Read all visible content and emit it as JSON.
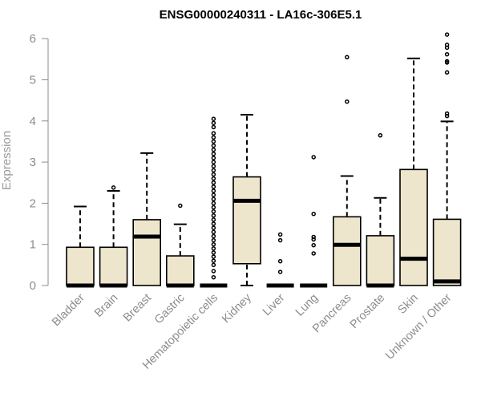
{
  "chart_data": {
    "type": "boxplot",
    "title": "ENSG00000240311 - LA16c-306E5.1",
    "xlabel": "",
    "ylabel": "Expression",
    "ylim": [
      0,
      6.2
    ],
    "yticks": [
      0,
      1,
      2,
      3,
      4,
      5,
      6
    ],
    "grid": false,
    "legend": "none",
    "colors": {
      "box_fill": "#ede6cd",
      "stroke": "#000000",
      "axis": "#8c8c8c"
    },
    "categories": [
      "Bladder",
      "Brain",
      "Breast",
      "Gastric",
      "Hematopoietic cells",
      "Kidney",
      "Liver",
      "Lung",
      "Pancreas",
      "Prostate",
      "Skin",
      "Unknown / Other"
    ],
    "boxes": [
      {
        "q1": 0,
        "median": 0,
        "q3": 0.93,
        "whisker_low": 0,
        "whisker_high": 1.92,
        "outliers": []
      },
      {
        "q1": 0,
        "median": 0,
        "q3": 0.93,
        "whisker_low": 0,
        "whisker_high": 2.3,
        "outliers": [
          2.38
        ]
      },
      {
        "q1": 0,
        "median": 1.19,
        "q3": 1.6,
        "whisker_low": 0,
        "whisker_high": 3.22,
        "outliers": []
      },
      {
        "q1": 0,
        "median": 0,
        "q3": 0.72,
        "whisker_low": 0,
        "whisker_high": 1.49,
        "outliers": [
          1.94
        ]
      },
      {
        "q1": 0,
        "median": 0,
        "q3": 0,
        "whisker_low": 0,
        "whisker_high": 0,
        "outliers": [
          0.2,
          0.35,
          0.5,
          0.6,
          0.7,
          0.8,
          0.9,
          1.0,
          1.1,
          1.2,
          1.3,
          1.4,
          1.5,
          1.6,
          1.7,
          1.8,
          1.9,
          2.0,
          2.1,
          2.2,
          2.3,
          2.4,
          2.5,
          2.6,
          2.7,
          2.8,
          2.9,
          3.0,
          3.1,
          3.2,
          3.3,
          3.4,
          3.5,
          3.6,
          3.7,
          3.85,
          3.95,
          4.05
        ]
      },
      {
        "q1": 0.53,
        "median": 2.06,
        "q3": 2.64,
        "whisker_low": 0,
        "whisker_high": 4.15,
        "outliers": []
      },
      {
        "q1": 0,
        "median": 0,
        "q3": 0,
        "whisker_low": 0,
        "whisker_high": 0,
        "outliers": [
          0.33,
          0.59,
          1.1,
          1.24
        ]
      },
      {
        "q1": 0,
        "median": 0,
        "q3": 0,
        "whisker_low": 0,
        "whisker_high": 0,
        "outliers": [
          0.78,
          0.98,
          1.12,
          1.18,
          1.74,
          3.12
        ]
      },
      {
        "q1": 0,
        "median": 0.99,
        "q3": 1.67,
        "whisker_low": 0,
        "whisker_high": 2.66,
        "outliers": [
          4.47,
          5.55
        ]
      },
      {
        "q1": 0,
        "median": 0,
        "q3": 1.21,
        "whisker_low": 0,
        "whisker_high": 2.13,
        "outliers": [
          3.65
        ]
      },
      {
        "q1": 0,
        "median": 0.65,
        "q3": 2.82,
        "whisker_low": 0,
        "whisker_high": 5.52,
        "outliers": []
      },
      {
        "q1": 0,
        "median": 0.1,
        "q3": 1.61,
        "whisker_low": 0,
        "whisker_high": 3.99,
        "outliers": [
          4.12,
          4.18,
          5.18,
          5.42,
          5.45,
          5.62,
          5.78,
          5.85,
          6.1
        ]
      }
    ]
  }
}
